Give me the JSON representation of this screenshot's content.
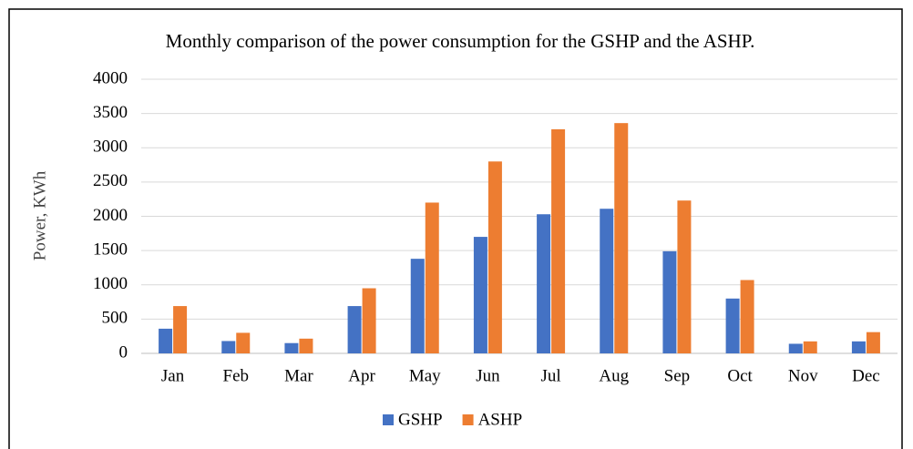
{
  "chart_data": {
    "type": "bar",
    "title": "Monthly comparison of the power consumption for the GSHP and the ASHP.",
    "y_label": "Power, KWh",
    "categories": [
      "Jan",
      "Feb",
      "Mar",
      "Apr",
      "May",
      "Jun",
      "Jul",
      "Aug",
      "Sep",
      "Oct",
      "Nov",
      "Dec"
    ],
    "series": [
      {
        "name": "GSHP",
        "color": "#4472c4",
        "values": [
          360,
          180,
          150,
          690,
          1380,
          1700,
          2030,
          2110,
          1490,
          800,
          140,
          175
        ]
      },
      {
        "name": "ASHP",
        "color": "#ed7d31",
        "values": [
          690,
          300,
          215,
          950,
          2200,
          2800,
          3270,
          3360,
          2230,
          1070,
          175,
          310
        ]
      }
    ],
    "ylim": [
      0,
      4000
    ],
    "yticks": [
      0,
      500,
      1000,
      1500,
      2000,
      2500,
      3000,
      3500,
      4000
    ],
    "grid": true,
    "legend": "bottom"
  }
}
